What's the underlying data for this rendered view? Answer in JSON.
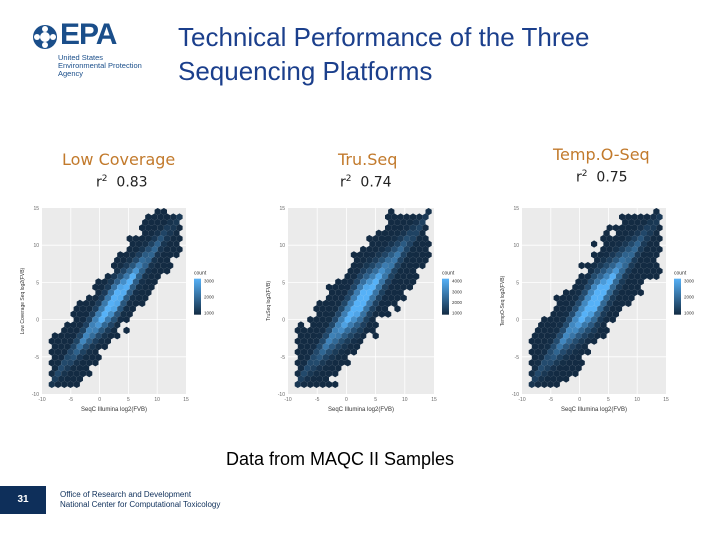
{
  "header": {
    "logo_word": "EPA",
    "logo_sub": [
      "United States",
      "Environmental Protection",
      "Agency"
    ],
    "title_lines": [
      "Technical Performance of the Three",
      "Sequencing Platforms"
    ]
  },
  "panels": [
    {
      "label": "Low Coverage",
      "r2_prefix": "r",
      "r2_sup": "2",
      "r2_value": "0.83"
    },
    {
      "label": "Tru.Seq",
      "r2_prefix": "r",
      "r2_sup": "2",
      "r2_value": "0.74"
    },
    {
      "label": "Temp.O-Seq",
      "r2_prefix": "r",
      "r2_sup": "2",
      "r2_value": "0.75"
    }
  ],
  "plots": [
    {
      "xlabel": "SeqC Illumina log2(FVB)",
      "ylabel": "Low Coverage Seq log2(FVB)",
      "legend_title": "count",
      "legend_ticks": [
        "3000",
        "2000",
        "1000"
      ]
    },
    {
      "xlabel": "SeqC Illumina log2(FVB)",
      "ylabel": "TruSeq log2(FVB)",
      "legend_title": "count",
      "legend_ticks": [
        "4000",
        "3000",
        "2000",
        "1000"
      ]
    },
    {
      "xlabel": "SeqC Illumina log2(FVB)",
      "ylabel": "TempO-Seq log2(FVB)",
      "legend_title": "count",
      "legend_ticks": [
        "3000",
        "2000",
        "1000"
      ]
    }
  ],
  "caption": "Data from MAQC II Samples",
  "footer": {
    "page_number": "31",
    "lines": [
      "Office of Research and Development",
      "National Center for Computational Toxicology"
    ]
  },
  "colors": {
    "title": "#1b3f8c",
    "panel_label": "#c27a2c",
    "hex_dark": "#132b43",
    "hex_light": "#56b1f7"
  }
}
